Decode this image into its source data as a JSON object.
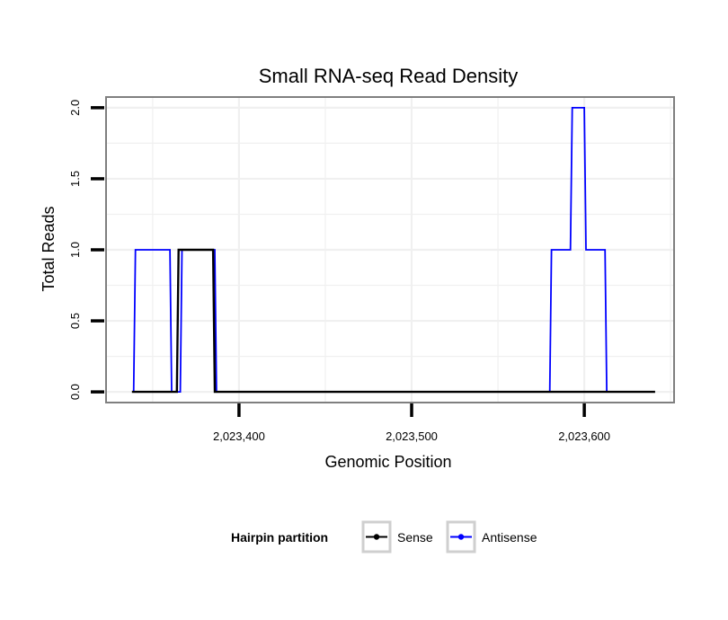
{
  "chart_data": {
    "type": "line",
    "title": "Small RNA-seq Read Density",
    "xlabel": "Genomic Position",
    "ylabel": "Total Reads",
    "xlim": [
      2023323,
      2023652
    ],
    "ylim": [
      -0.075,
      2.075
    ],
    "x_ticks": [
      2023400,
      2023500,
      2023600
    ],
    "x_tick_labels": [
      "2,023,400",
      "2,023,500",
      "2,023,600"
    ],
    "y_ticks": [
      0,
      0.5,
      1,
      1.5,
      2
    ],
    "y_tick_labels": [
      "0.0",
      "0.5",
      "1.0",
      "1.5",
      "2.0"
    ],
    "grid": true,
    "legend": {
      "title": "Hairpin partition",
      "position": "bottom",
      "entries": [
        {
          "name": "Sense",
          "color": "#000000"
        },
        {
          "name": "Antisense",
          "color": "#0000ff"
        }
      ]
    },
    "series": [
      {
        "name": "Antisense",
        "color": "#0000ff",
        "points": [
          [
            2023339,
            0
          ],
          [
            2023340,
            1
          ],
          [
            2023360,
            1
          ],
          [
            2023361,
            0
          ],
          [
            2023366,
            0
          ],
          [
            2023367,
            1
          ],
          [
            2023386,
            1
          ],
          [
            2023387,
            0
          ],
          [
            2023580,
            0
          ],
          [
            2023581,
            1
          ],
          [
            2023592,
            1
          ],
          [
            2023593,
            2
          ],
          [
            2023600,
            2
          ],
          [
            2023601,
            1
          ],
          [
            2023612,
            1
          ],
          [
            2023613,
            0
          ]
        ]
      },
      {
        "name": "Sense",
        "color": "#000000",
        "points": [
          [
            2023338,
            0
          ],
          [
            2023364,
            0
          ],
          [
            2023365,
            1
          ],
          [
            2023385,
            1
          ],
          [
            2023386,
            0
          ],
          [
            2023641,
            0
          ]
        ]
      }
    ]
  }
}
